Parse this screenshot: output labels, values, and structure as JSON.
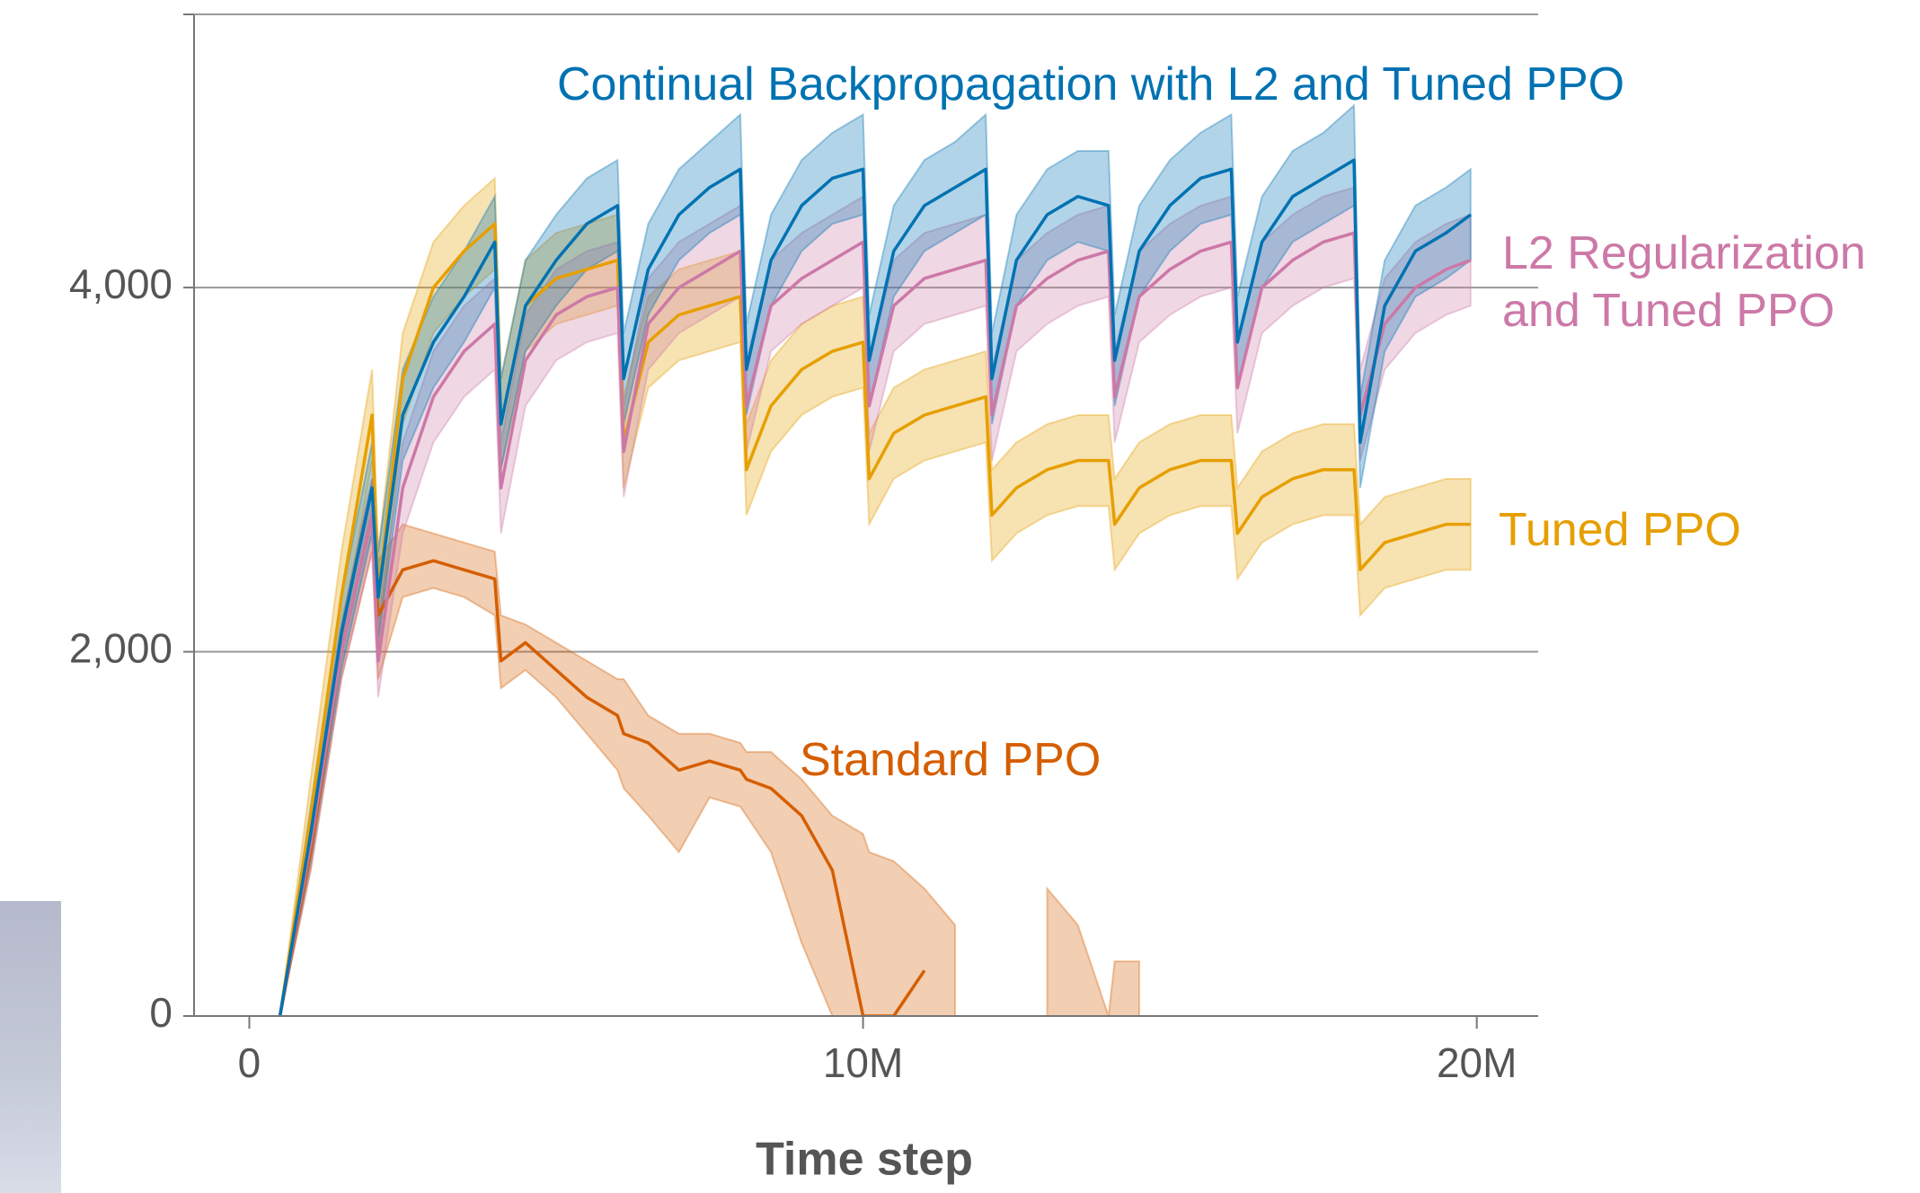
{
  "chart_data": {
    "type": "line",
    "x_label": "Time step",
    "x": [
      500000,
      1000000,
      1500000,
      2000000,
      2100000,
      2500000,
      3000000,
      3500000,
      4000000,
      4100000,
      4500000,
      5000000,
      5500000,
      6000000,
      6100000,
      6500000,
      7000000,
      7500000,
      8000000,
      8100000,
      8500000,
      9000000,
      9500000,
      10000000,
      10100000,
      10500000,
      11000000,
      11500000,
      12000000,
      12100000,
      12500000,
      13000000,
      13500000,
      14000000,
      14100000,
      14500000,
      15000000,
      15500000,
      16000000,
      16100000,
      16500000,
      17000000,
      17500000,
      18000000,
      18100000,
      18500000,
      19000000,
      19500000,
      19900000
    ],
    "xlim": [
      -900000,
      21000000
    ],
    "xticks": [
      0,
      {
        "value": 10000000,
        "label": "10M"
      },
      {
        "value": 20000000,
        "label": "20M"
      }
    ],
    "ylim": [
      0,
      5500
    ],
    "yticks": [
      0,
      {
        "value": 2000,
        "label": "2,000"
      },
      {
        "value": 4000,
        "label": "4,000"
      }
    ],
    "grid": true,
    "series": [
      {
        "name": "Standard PPO",
        "color": "#d55e00",
        "values": [
          0,
          900,
          2000,
          2750,
          2200,
          2450,
          2500,
          2450,
          2400,
          1950,
          2050,
          1900,
          1750,
          1650,
          1550,
          1500,
          1350,
          1400,
          1350,
          1300,
          1250,
          1100,
          800,
          0,
          0,
          0,
          250,
          null,
          null,
          null,
          null,
          null,
          null,
          null,
          null,
          null,
          null,
          null,
          null,
          null,
          null,
          null,
          null,
          null,
          null,
          null,
          null,
          null,
          null
        ],
        "upper": [
          0,
          1000,
          2150,
          2950,
          2500,
          2700,
          2650,
          2600,
          2550,
          2200,
          2150,
          2050,
          1950,
          1850,
          1850,
          1650,
          1550,
          1550,
          1500,
          1450,
          1450,
          1300,
          1100,
          1000,
          900,
          850,
          700,
          500,
          null,
          null,
          null,
          700,
          500,
          0,
          300,
          300,
          null,
          null,
          null,
          null,
          null,
          null,
          null,
          null,
          null,
          null,
          null,
          null,
          null
        ],
        "lower": [
          0,
          800,
          1850,
          2550,
          1850,
          2300,
          2350,
          2300,
          2200,
          1800,
          1900,
          1750,
          1550,
          1350,
          1250,
          1100,
          900,
          1200,
          1150,
          1100,
          900,
          400,
          0,
          0,
          0,
          0,
          0,
          0,
          null,
          null,
          null,
          0,
          0,
          0,
          0,
          0,
          null,
          null,
          null,
          null,
          null,
          null,
          null,
          null,
          null,
          null,
          null,
          null,
          null
        ]
      },
      {
        "name": "Tuned PPO",
        "color": "#e69f00",
        "values": [
          0,
          1100,
          2300,
          3300,
          2300,
          3500,
          4000,
          4200,
          4350,
          3250,
          3900,
          4050,
          4100,
          4150,
          3150,
          3700,
          3850,
          3900,
          3950,
          3000,
          3350,
          3550,
          3650,
          3700,
          2950,
          3200,
          3300,
          3350,
          3400,
          2750,
          2900,
          3000,
          3050,
          3050,
          2700,
          2900,
          3000,
          3050,
          3050,
          2650,
          2850,
          2950,
          3000,
          3000,
          2450,
          2600,
          2650,
          2700,
          2700
        ],
        "upper": [
          0,
          1300,
          2550,
          3550,
          2550,
          3750,
          4250,
          4450,
          4600,
          3500,
          4150,
          4300,
          4350,
          4400,
          3400,
          3950,
          4100,
          4150,
          4200,
          3250,
          3600,
          3800,
          3900,
          3950,
          3200,
          3450,
          3550,
          3600,
          3650,
          3000,
          3150,
          3250,
          3300,
          3300,
          2950,
          3150,
          3250,
          3300,
          3300,
          2900,
          3100,
          3200,
          3250,
          3250,
          2700,
          2850,
          2900,
          2950,
          2950
        ],
        "lower": [
          0,
          900,
          2050,
          3050,
          2050,
          3250,
          3750,
          3950,
          4100,
          3000,
          3650,
          3800,
          3850,
          3900,
          2900,
          3450,
          3600,
          3650,
          3700,
          2750,
          3100,
          3300,
          3400,
          3450,
          2700,
          2950,
          3050,
          3100,
          3150,
          2500,
          2650,
          2750,
          2800,
          2800,
          2450,
          2650,
          2750,
          2800,
          2800,
          2400,
          2600,
          2700,
          2750,
          2750,
          2200,
          2350,
          2400,
          2450,
          2450
        ]
      },
      {
        "name": "L2 Regularization and Tuned PPO",
        "color": "#cc79a7",
        "values": [
          0,
          950,
          2000,
          2750,
          1950,
          2900,
          3400,
          3650,
          3800,
          2900,
          3600,
          3850,
          3950,
          4000,
          3100,
          3800,
          4000,
          4100,
          4200,
          3350,
          3900,
          4050,
          4150,
          4250,
          3350,
          3900,
          4050,
          4100,
          4150,
          3300,
          3900,
          4050,
          4150,
          4200,
          3400,
          3950,
          4100,
          4200,
          4250,
          3450,
          4000,
          4150,
          4250,
          4300,
          3300,
          3800,
          4000,
          4100,
          4150
        ],
        "upper": [
          0,
          1100,
          2150,
          2950,
          2150,
          3150,
          3650,
          3900,
          4050,
          3150,
          3850,
          4100,
          4200,
          4250,
          3350,
          4050,
          4250,
          4350,
          4450,
          3600,
          4150,
          4300,
          4400,
          4500,
          3600,
          4150,
          4300,
          4350,
          4400,
          3550,
          4150,
          4300,
          4400,
          4450,
          3650,
          4200,
          4350,
          4450,
          4500,
          3700,
          4250,
          4400,
          4500,
          4550,
          3550,
          4050,
          4250,
          4350,
          4400
        ],
        "lower": [
          0,
          800,
          1850,
          2550,
          1750,
          2650,
          3150,
          3400,
          3550,
          2650,
          3350,
          3600,
          3700,
          3750,
          2850,
          3550,
          3750,
          3850,
          3950,
          3100,
          3650,
          3800,
          3900,
          4000,
          3100,
          3650,
          3800,
          3850,
          3900,
          3050,
          3650,
          3800,
          3900,
          3950,
          3150,
          3700,
          3850,
          3950,
          4000,
          3200,
          3750,
          3900,
          4000,
          4050,
          3050,
          3550,
          3750,
          3850,
          3900
        ]
      },
      {
        "name": "Continual Backpropagation with L2 and Tuned PPO",
        "color": "#0072b2",
        "values": [
          0,
          1000,
          2100,
          2900,
          2300,
          3300,
          3700,
          3950,
          4250,
          3250,
          3900,
          4150,
          4350,
          4450,
          3500,
          4100,
          4400,
          4550,
          4650,
          3550,
          4150,
          4450,
          4600,
          4650,
          3600,
          4200,
          4450,
          4550,
          4650,
          3500,
          4150,
          4400,
          4500,
          4450,
          3600,
          4200,
          4450,
          4600,
          4650,
          3700,
          4250,
          4500,
          4600,
          4700,
          3150,
          3900,
          4200,
          4300,
          4400
        ],
        "upper": [
          0,
          1150,
          2300,
          3150,
          2550,
          3550,
          3950,
          4200,
          4500,
          3500,
          4150,
          4400,
          4600,
          4700,
          3750,
          4350,
          4650,
          4800,
          4950,
          3800,
          4400,
          4700,
          4850,
          4950,
          3850,
          4450,
          4700,
          4800,
          4950,
          3750,
          4400,
          4650,
          4750,
          4750,
          3850,
          4450,
          4700,
          4850,
          4950,
          3950,
          4500,
          4750,
          4850,
          5000,
          3400,
          4150,
          4450,
          4550,
          4650
        ],
        "lower": [
          0,
          850,
          1900,
          2650,
          2050,
          3050,
          3450,
          3700,
          4000,
          3000,
          3650,
          3900,
          4100,
          4200,
          3250,
          3850,
          4150,
          4300,
          4400,
          3300,
          3900,
          4200,
          4350,
          4400,
          3350,
          3950,
          4200,
          4300,
          4400,
          3250,
          3900,
          4150,
          4250,
          4200,
          3350,
          3950,
          4200,
          4350,
          4400,
          3450,
          4000,
          4250,
          4350,
          4450,
          2900,
          3650,
          3950,
          4050,
          4150
        ]
      }
    ]
  }
}
